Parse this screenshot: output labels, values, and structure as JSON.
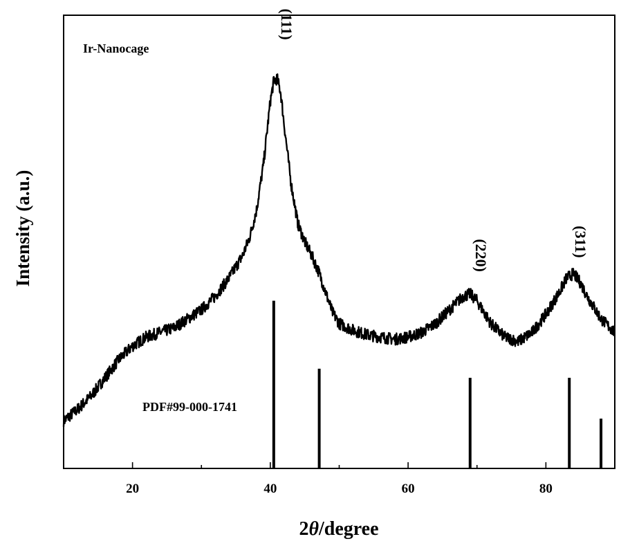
{
  "chart_data": {
    "type": "line",
    "title": "",
    "sample_label": "Ir-Nanocage",
    "xlabel_prefix": "2",
    "xlabel_symbol": "θ",
    "xlabel_suffix": "/degree",
    "ylabel": "Intensity (a.u.)",
    "xlim": [
      10,
      90
    ],
    "ylim": [
      0,
      100
    ],
    "grid": false,
    "x_ticks": [
      20,
      40,
      60,
      80
    ],
    "y_ticks_shown": false,
    "series": [
      {
        "x": [
          10,
          12,
          14,
          16,
          18,
          20,
          22,
          24,
          26,
          28,
          30,
          32,
          34,
          36,
          37,
          38,
          39,
          40,
          40.5,
          41,
          41.5,
          42,
          43,
          44,
          45,
          46,
          47,
          48,
          49,
          50,
          52,
          54,
          56,
          58,
          60,
          62,
          64,
          66,
          68,
          69,
          70,
          72,
          74,
          76,
          78,
          80,
          82,
          83,
          84,
          85,
          86,
          88,
          90
        ],
        "values": [
          10.5,
          13,
          16,
          20,
          24,
          27,
          29,
          30,
          31,
          33,
          35,
          38,
          42,
          47,
          51,
          57,
          67,
          81,
          85.5,
          86,
          83,
          76,
          63,
          54,
          50,
          47,
          43.5,
          39,
          34.5,
          32,
          30.5,
          29.5,
          29,
          28.5,
          29,
          30,
          32,
          35,
          38,
          38.5,
          37,
          32,
          29,
          28,
          30,
          34,
          39,
          42,
          43,
          41,
          38,
          33,
          30
        ]
      }
    ],
    "reference": {
      "label": "PDF#99-000-1741",
      "x": [
        40.5,
        47.1,
        69.0,
        83.4,
        88.0
      ],
      "heights": [
        37,
        22,
        20,
        20,
        11
      ]
    },
    "peak_annotations": [
      {
        "label": "(111)",
        "x": 40.8,
        "y": 98
      },
      {
        "label": "(220)",
        "x": 69.0,
        "y": 47
      },
      {
        "label": "(311)",
        "x": 83.5,
        "y": 50
      }
    ]
  }
}
